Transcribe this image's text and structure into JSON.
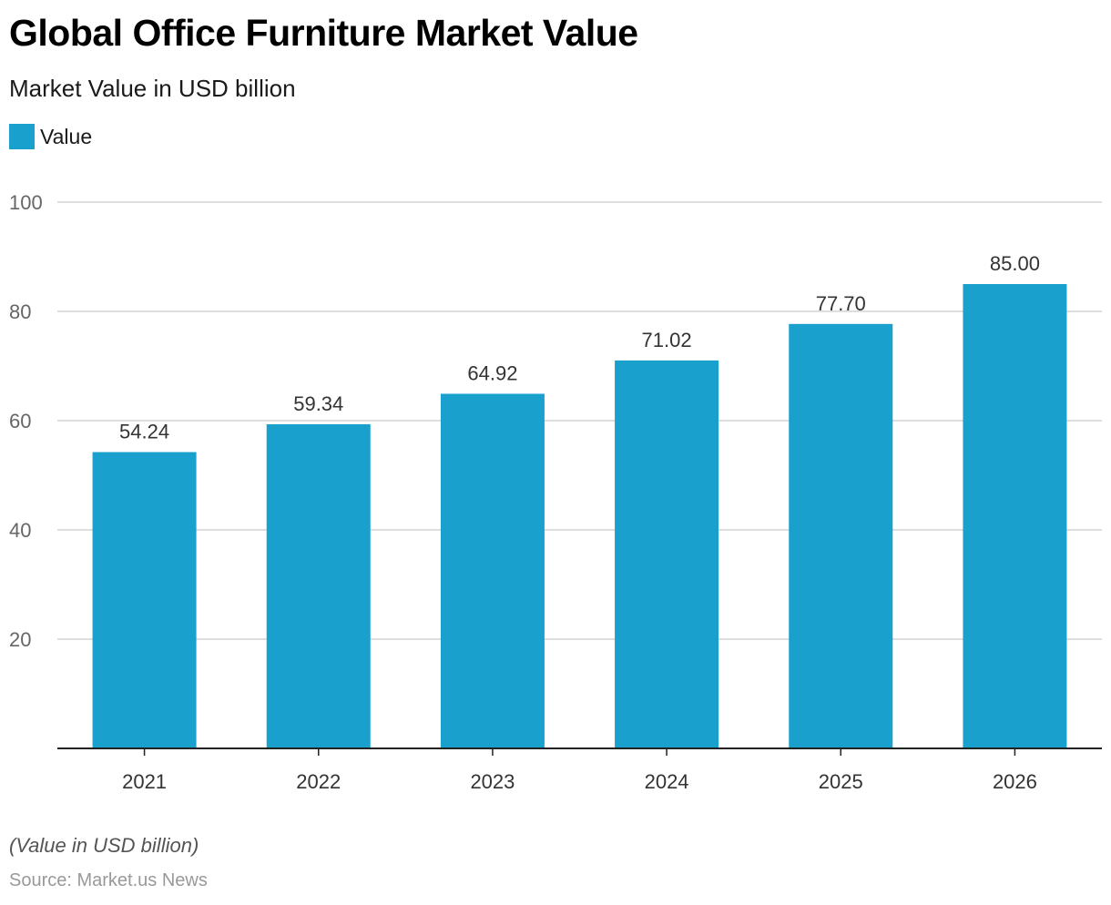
{
  "chart_data": {
    "type": "bar",
    "title": "Global Office Furniture Market Value",
    "subtitle": "Market Value in USD billion",
    "categories": [
      "2021",
      "2022",
      "2023",
      "2024",
      "2025",
      "2026"
    ],
    "series": [
      {
        "name": "Value",
        "values": [
          54.24,
          59.34,
          64.92,
          71.02,
          77.7,
          85.0
        ],
        "value_labels": [
          "54.24",
          "59.34",
          "64.92",
          "71.02",
          "77.70",
          "85.00"
        ],
        "color": "#1aa0cd"
      }
    ],
    "ylim": [
      0,
      100
    ],
    "yticks": [
      20,
      40,
      60,
      80,
      100
    ],
    "grid": true,
    "legend": "top-left",
    "xlabel": "",
    "ylabel": ""
  },
  "footnote": "(Value in USD billion)",
  "source": "Source: Market.us News",
  "colors": {
    "bar": "#1aa0cd",
    "grid": "#d4d4d4",
    "axis": "#222222"
  }
}
